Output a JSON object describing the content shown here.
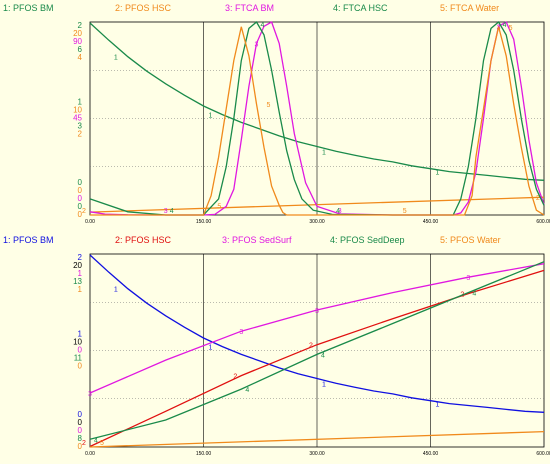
{
  "chart_data": [
    {
      "type": "line",
      "xlim": [
        0,
        600
      ],
      "x_ticks": [
        "0.00",
        "150.00",
        "300.00",
        "450.00",
        "600.00"
      ],
      "grid": true,
      "series": [
        {
          "id": "1",
          "name": "1: PFOS BM",
          "color": "#1a8a4a",
          "x": [
            0,
            25,
            50,
            75,
            100,
            125,
            150,
            175,
            200,
            225,
            250,
            275,
            300,
            325,
            350,
            375,
            400,
            425,
            450,
            475,
            500,
            525,
            550,
            575,
            600
          ],
          "y": [
            1.99,
            1.81,
            1.64,
            1.49,
            1.36,
            1.24,
            1.13,
            1.04,
            0.96,
            0.89,
            0.82,
            0.76,
            0.71,
            0.66,
            0.62,
            0.58,
            0.55,
            0.51,
            0.48,
            0.45,
            0.43,
            0.41,
            0.39,
            0.37,
            0.36
          ]
        },
        {
          "id": "2",
          "name": "2: PFOS HSC",
          "color": "#f08a1c",
          "x": [
            0,
            600
          ],
          "y": [
            0.3,
            1.84
          ]
        },
        {
          "id": "3",
          "name": "3: FTCA BM",
          "color": "#e018e0",
          "x": [
            0,
            20,
            50,
            100,
            150,
            165,
            180,
            190,
            200,
            210,
            220,
            230,
            240,
            250,
            260,
            270,
            285,
            300,
            330,
            400,
            480,
            490,
            500,
            510,
            520,
            530,
            540,
            550,
            560,
            570,
            580,
            590,
            600
          ],
          "y": [
            1.5,
            0.4,
            0.1,
            0.0,
            0.0,
            0.3,
            4,
            12,
            35,
            60,
            80,
            88,
            90,
            80,
            60,
            38,
            15,
            4,
            0.5,
            0,
            0,
            1,
            6,
            20,
            45,
            72,
            88,
            90,
            82,
            60,
            35,
            15,
            5
          ]
        },
        {
          "id": "4",
          "name": "4: FTCA HSC",
          "color": "#1a8a4a",
          "x": [
            0,
            50,
            100,
            150,
            170,
            180,
            190,
            200,
            210,
            220,
            230,
            240,
            250,
            260,
            270,
            280,
            295,
            320,
            400,
            480,
            490,
            500,
            510,
            520,
            530,
            540,
            550,
            560,
            570,
            580,
            590,
            600
          ],
          "y": [
            0.5,
            0.1,
            0.0,
            0.0,
            0.5,
            1.5,
            3,
            4.8,
            5.8,
            6.1,
            5.6,
            4.5,
            3.2,
            2.0,
            1.1,
            0.5,
            0.15,
            0.02,
            0,
            0,
            0.5,
            1.5,
            3,
            4.8,
            5.8,
            6.1,
            5.6,
            4.5,
            3.0,
            1.7,
            0.8,
            0.3
          ]
        },
        {
          "id": "5",
          "name": "5: FTCA Water",
          "color": "#f08a1c",
          "x": [
            0,
            150,
            155,
            160,
            170,
            180,
            190,
            200,
            210,
            220,
            230,
            240,
            250,
            255,
            260,
            300,
            400,
            495,
            500,
            505,
            510,
            520,
            530,
            540,
            550,
            560,
            570,
            580,
            590,
            600
          ],
          "y": [
            0,
            0,
            0.2,
            0.4,
            1.2,
            2.2,
            3.2,
            3.9,
            3.3,
            2.3,
            1.4,
            0.6,
            0.2,
            0.05,
            0,
            0,
            0,
            0,
            0.2,
            0.4,
            1.2,
            2.2,
            3.2,
            3.9,
            3.3,
            2.3,
            1.4,
            0.6,
            0.1,
            0
          ]
        }
      ],
      "legend": [
        "1: PFOS BM",
        "2: PFOS HSC",
        "3: FTCA BM",
        "4: FTCA HSC",
        "5: FTCA Water"
      ],
      "axes": [
        {
          "color": "#1a8a4a",
          "top": "2",
          "mid": "1",
          "bottom": "0"
        },
        {
          "color": "#f08a1c",
          "top": "20",
          "mid": "10",
          "bottom": "0"
        },
        {
          "color": "#e018e0",
          "top": "90",
          "mid": "45",
          "bottom": "0"
        },
        {
          "color": "#1a8a4a",
          "top": "6",
          "mid": "3",
          "bottom": "0"
        },
        {
          "color": "#f08a1c",
          "top": "4",
          "mid": "2",
          "bottom": "0"
        }
      ],
      "ylims": {
        "1": [
          0,
          2
        ],
        "2": [
          0,
          20
        ],
        "3": [
          0,
          90
        ],
        "4": [
          0,
          6
        ],
        "5": [
          0,
          4
        ]
      }
    },
    {
      "type": "line",
      "xlim": [
        0,
        600
      ],
      "x_ticks": [
        "0.00",
        "150.00",
        "300.00",
        "450.00",
        "600.00"
      ],
      "grid": true,
      "series": [
        {
          "id": "1",
          "name": "1: PFOS BM",
          "color": "#1010e0",
          "x": [
            0,
            25,
            50,
            75,
            100,
            125,
            150,
            175,
            200,
            225,
            250,
            275,
            300,
            325,
            350,
            375,
            400,
            425,
            450,
            475,
            500,
            525,
            550,
            575,
            600
          ],
          "y": [
            1.99,
            1.81,
            1.64,
            1.49,
            1.36,
            1.24,
            1.13,
            1.04,
            0.96,
            0.89,
            0.82,
            0.76,
            0.71,
            0.66,
            0.62,
            0.58,
            0.55,
            0.51,
            0.48,
            0.45,
            0.43,
            0.41,
            0.39,
            0.37,
            0.36
          ]
        },
        {
          "id": "2",
          "name": "2: PFOS HSC",
          "color": "#e01010",
          "x": [
            0,
            100,
            200,
            300,
            400,
            500,
            600
          ],
          "y": [
            0.05,
            3.7,
            7.4,
            10.6,
            13.3,
            15.9,
            18.3
          ]
        },
        {
          "id": "3",
          "name": "3: PFOS SedSurf",
          "color": "#e018e0",
          "x": [
            0,
            100,
            200,
            300,
            400,
            500,
            600
          ],
          "y": [
            0.28,
            0.45,
            0.6,
            0.71,
            0.8,
            0.88,
            0.95
          ]
        },
        {
          "id": "4",
          "name": "4: PFOS SedDeep",
          "color": "#1a8a4a",
          "x": [
            0,
            100,
            200,
            300,
            400,
            500,
            600
          ],
          "y": [
            8.2,
            8.7,
            9.5,
            10.4,
            11.2,
            12.0,
            12.8
          ]
        },
        {
          "id": "5",
          "name": "5: PFOS Water",
          "color": "#f08a1c",
          "x": [
            0,
            600
          ],
          "y": [
            0,
            0.08
          ]
        }
      ],
      "legend": [
        "1: PFOS BM",
        "2: PFOS HSC",
        "3: PFOS SedSurf",
        "4: PFOS SedDeep",
        "5: PFOS Water"
      ],
      "axes": [
        {
          "color": "#1010e0",
          "top": "2",
          "mid": "1",
          "bottom": "0"
        },
        {
          "color": "#000000",
          "top": "20",
          "mid": "10",
          "bottom": "0"
        },
        {
          "color": "#e018e0",
          "top": "1",
          "mid": "0",
          "bottom": "0"
        },
        {
          "color": "#1a8a4a",
          "top": "13",
          "mid": "11",
          "bottom": "8"
        },
        {
          "color": "#f08a1c",
          "top": "1",
          "mid": "0",
          "bottom": "0"
        }
      ],
      "ylims": {
        "1": [
          0,
          2
        ],
        "2": [
          0,
          20
        ],
        "3": [
          0,
          1
        ],
        "4": [
          8,
          13
        ],
        "5": [
          0,
          1
        ]
      }
    }
  ]
}
